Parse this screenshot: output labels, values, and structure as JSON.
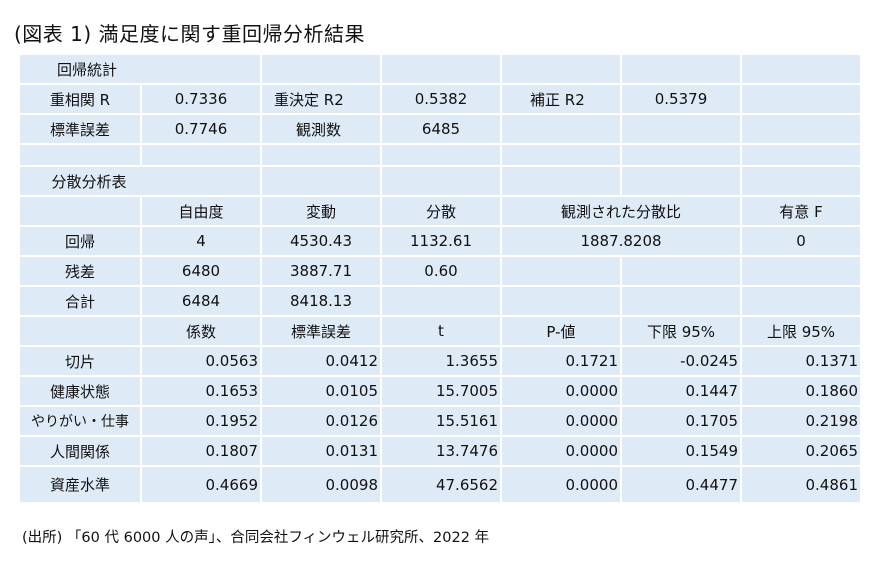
{
  "title": "(図表 1)  満足度に関す重回帰分析結果",
  "regression_stats": {
    "header": "回帰統計",
    "multiple_r_label": "重相関 R",
    "multiple_r": "0.7336",
    "r2_label": "重決定  R2",
    "r2": "0.5382",
    "adj_r2_label": "補正  R2",
    "adj_r2": "0.5379",
    "std_error_label": "標準誤差",
    "std_error": "0.7746",
    "observations_label": "観測数",
    "observations": "6485"
  },
  "anova": {
    "header": "分散分析表",
    "columns": [
      "自由度",
      "変動",
      "分散",
      "観測された分散比",
      "有意  F"
    ],
    "rows": [
      {
        "label": "回帰",
        "df": "4",
        "ss": "4530.43",
        "ms": "1132.61",
        "f": "1887.8208",
        "sig_f": "0"
      },
      {
        "label": "残差",
        "df": "6480",
        "ss": "3887.71",
        "ms": "0.60"
      },
      {
        "label": "合計",
        "df": "6484",
        "ss": "8418.13"
      }
    ]
  },
  "coefficients": {
    "columns": [
      "係数",
      "標準誤差",
      "t",
      "P-値",
      "下限  95%",
      "上限  95%"
    ],
    "rows": [
      {
        "label": "切片",
        "coef": "0.0563",
        "se": "0.0412",
        "t": "1.3655",
        "p": "0.1721",
        "lower": "-0.0245",
        "upper": "0.1371"
      },
      {
        "label": "健康状態",
        "coef": "0.1653",
        "se": "0.0105",
        "t": "15.7005",
        "p": "0.0000",
        "lower": "0.1447",
        "upper": "0.1860"
      },
      {
        "label": "やりがい・仕事",
        "coef": "0.1952",
        "se": "0.0126",
        "t": "15.5161",
        "p": "0.0000",
        "lower": "0.1705",
        "upper": "0.2198"
      },
      {
        "label": "人間関係",
        "coef": "0.1807",
        "se": "0.0131",
        "t": "13.7476",
        "p": "0.0000",
        "lower": "0.1549",
        "upper": "0.2065"
      },
      {
        "label": "資産水準",
        "coef": "0.4669",
        "se": "0.0098",
        "t": "47.6562",
        "p": "0.0000",
        "lower": "0.4477",
        "upper": "0.4861"
      }
    ]
  },
  "source_note": "(出所) 「60 代 6000 人の声」、合同会社フィンウェル研究所、2022 年"
}
